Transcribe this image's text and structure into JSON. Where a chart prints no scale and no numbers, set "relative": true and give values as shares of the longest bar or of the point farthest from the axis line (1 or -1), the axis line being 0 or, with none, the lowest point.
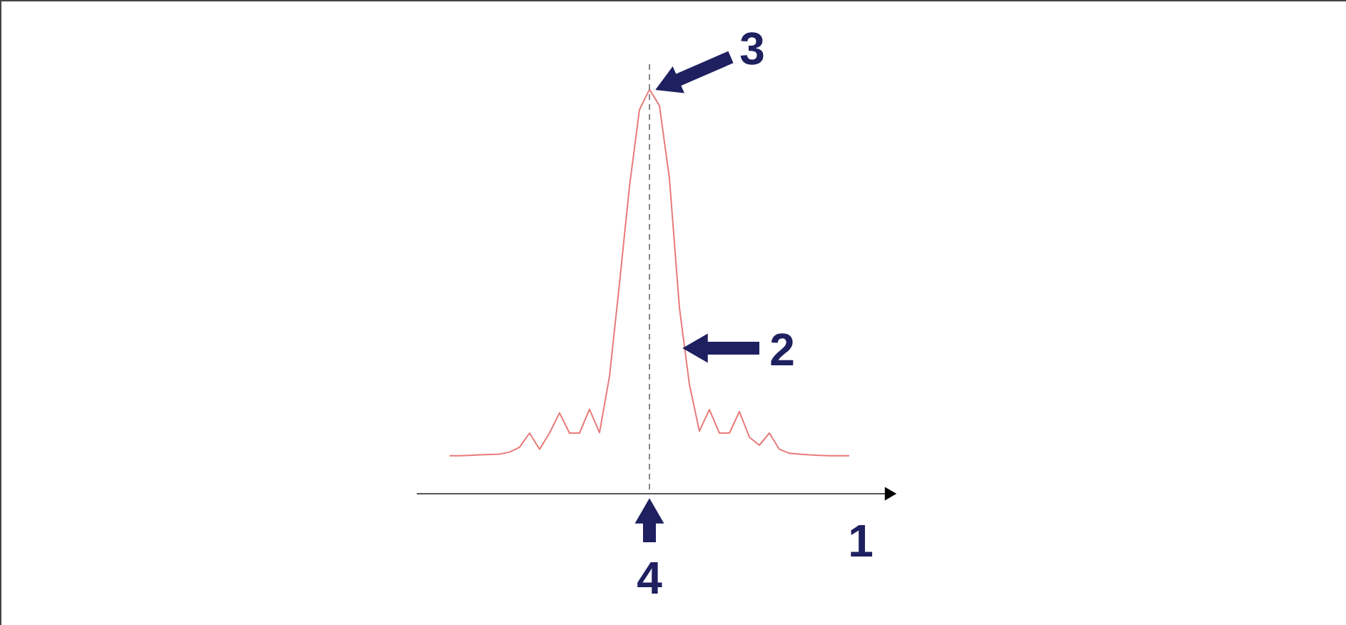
{
  "chart_data": {
    "type": "line",
    "relative": true,
    "categories": [
      null,
      null,
      null,
      null,
      null,
      null,
      null,
      null,
      null,
      null,
      null,
      null,
      null,
      null,
      null,
      null,
      null,
      null,
      null,
      null,
      null,
      null,
      null,
      null,
      null,
      null,
      null,
      null,
      null,
      null,
      null,
      null,
      null,
      null,
      null,
      null,
      null,
      null,
      null,
      null,
      null
    ],
    "series": [
      {
        "color": "#e87a7a",
        "values": [
          0.094,
          0.094,
          0.095,
          0.096,
          0.097,
          0.098,
          0.103,
          0.115,
          0.15,
          0.11,
          0.15,
          0.2,
          0.15,
          0.15,
          0.209,
          0.151,
          0.29,
          0.52,
          0.76,
          0.95,
          1.0,
          0.96,
          0.78,
          0.46,
          0.27,
          0.155,
          0.208,
          0.15,
          0.15,
          0.203,
          0.14,
          0.12,
          0.15,
          0.11,
          0.1,
          0.098,
          0.096,
          0.095,
          0.094,
          0.094,
          0.094
        ]
      }
    ],
    "annotations": [
      "1",
      "2",
      "3",
      "4"
    ]
  }
}
